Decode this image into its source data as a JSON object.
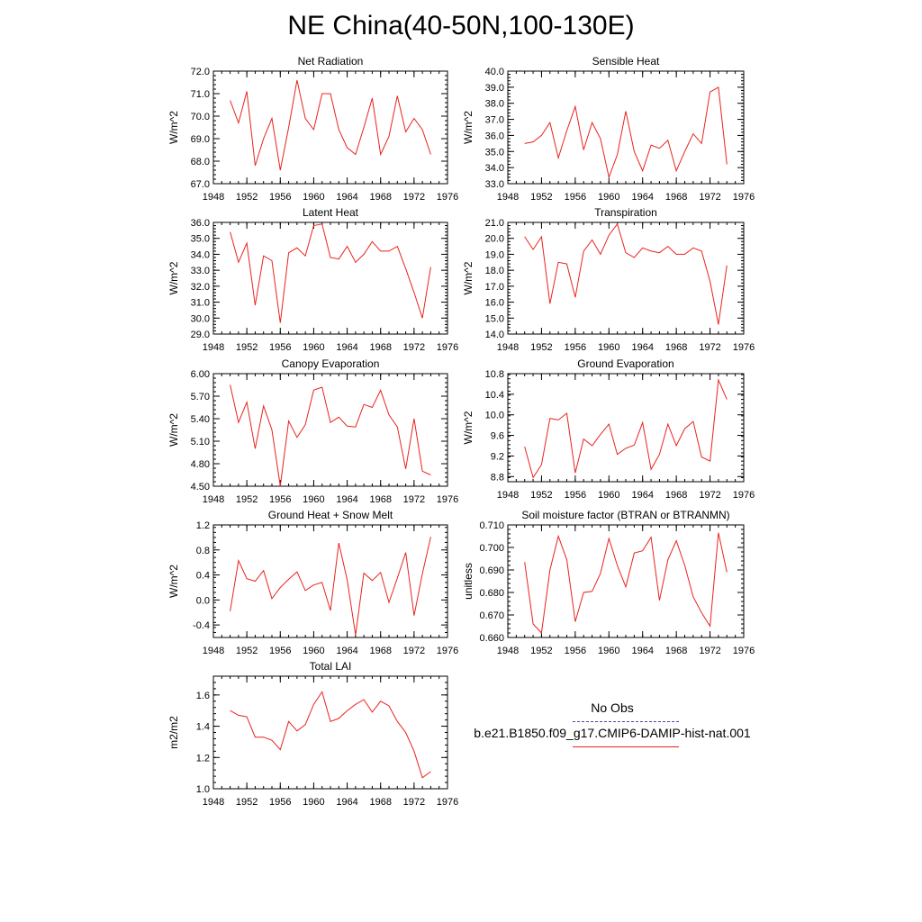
{
  "figure": {
    "title": "NE China(40-50N,100-130E)"
  },
  "legend": {
    "entries": [
      {
        "label": "No Obs",
        "style": "dashed",
        "color": "#4a4a9a"
      },
      {
        "label": "b.e21.B1850.f09_g17.CMIP6-DAMIP-hist-nat.001",
        "style": "solid",
        "color": "#e8231e"
      }
    ]
  },
  "chart_data": [
    {
      "type": "line",
      "title": "Net Radiation",
      "ylabel": "W/m^2",
      "xlim": [
        1948,
        1976
      ],
      "ylim": [
        67.0,
        72.0
      ],
      "xticks": [
        "1948",
        "1952",
        "1956",
        "1960",
        "1964",
        "1968",
        "1972",
        "1976"
      ],
      "yticks": [
        "67.0",
        "68.0",
        "69.0",
        "70.0",
        "71.0",
        "72.0"
      ],
      "series": [
        {
          "color": "#e8231e",
          "x": [
            1950,
            1951,
            1952,
            1953,
            1954,
            1955,
            1956,
            1957,
            1958,
            1959,
            1960,
            1961,
            1962,
            1963,
            1964,
            1965,
            1966,
            1967,
            1968,
            1969,
            1970,
            1971,
            1972,
            1973,
            1974
          ],
          "values": [
            70.7,
            69.7,
            71.1,
            67.8,
            69.0,
            69.9,
            67.6,
            69.5,
            71.6,
            69.9,
            69.4,
            71.0,
            71.0,
            69.4,
            68.6,
            68.3,
            69.5,
            70.8,
            68.3,
            69.1,
            70.9,
            69.3,
            69.9,
            69.4,
            68.3
          ]
        }
      ]
    },
    {
      "type": "line",
      "title": "Sensible Heat",
      "ylabel": "W/m^2",
      "xlim": [
        1948,
        1976
      ],
      "ylim": [
        33.0,
        40.0
      ],
      "xticks": [
        "1948",
        "1952",
        "1956",
        "1960",
        "1964",
        "1968",
        "1972",
        "1976"
      ],
      "yticks": [
        "33.0",
        "34.0",
        "35.0",
        "36.0",
        "37.0",
        "38.0",
        "39.0",
        "40.0"
      ],
      "series": [
        {
          "color": "#e8231e",
          "x": [
            1950,
            1951,
            1952,
            1953,
            1954,
            1955,
            1956,
            1957,
            1958,
            1959,
            1960,
            1961,
            1962,
            1963,
            1964,
            1965,
            1966,
            1967,
            1968,
            1969,
            1970,
            1971,
            1972,
            1973,
            1974
          ],
          "values": [
            35.5,
            35.6,
            36.0,
            36.8,
            34.6,
            36.3,
            37.8,
            35.1,
            36.8,
            35.8,
            33.4,
            34.8,
            37.5,
            35.0,
            33.8,
            35.4,
            35.2,
            35.7,
            33.8,
            35.0,
            36.1,
            35.5,
            38.7,
            39.0,
            34.2
          ]
        }
      ]
    },
    {
      "type": "line",
      "title": "Latent Heat",
      "ylabel": "W/m^2",
      "xlim": [
        1948,
        1976
      ],
      "ylim": [
        29.0,
        36.0
      ],
      "xticks": [
        "1948",
        "1952",
        "1956",
        "1960",
        "1964",
        "1968",
        "1972",
        "1976"
      ],
      "yticks": [
        "29.0",
        "30.0",
        "31.0",
        "32.0",
        "33.0",
        "34.0",
        "35.0",
        "36.0"
      ],
      "series": [
        {
          "color": "#e8231e",
          "x": [
            1950,
            1951,
            1952,
            1953,
            1954,
            1955,
            1956,
            1957,
            1958,
            1959,
            1960,
            1961,
            1962,
            1963,
            1964,
            1965,
            1966,
            1967,
            1968,
            1969,
            1970,
            1971,
            1972,
            1973,
            1974
          ],
          "values": [
            35.4,
            33.5,
            34.7,
            30.8,
            33.9,
            33.6,
            29.7,
            34.1,
            34.4,
            33.9,
            35.8,
            35.9,
            33.8,
            33.7,
            34.5,
            33.5,
            34.0,
            34.8,
            34.2,
            34.2,
            34.5,
            33.1,
            31.6,
            30.0,
            33.2
          ]
        }
      ]
    },
    {
      "type": "line",
      "title": "Transpiration",
      "ylabel": "W/m^2",
      "xlim": [
        1948,
        1976
      ],
      "ylim": [
        14.0,
        21.0
      ],
      "xticks": [
        "1948",
        "1952",
        "1956",
        "1960",
        "1964",
        "1968",
        "1972",
        "1976"
      ],
      "yticks": [
        "14.0",
        "15.0",
        "16.0",
        "17.0",
        "18.0",
        "19.0",
        "20.0",
        "21.0"
      ],
      "series": [
        {
          "color": "#e8231e",
          "x": [
            1950,
            1951,
            1952,
            1953,
            1954,
            1955,
            1956,
            1957,
            1958,
            1959,
            1960,
            1961,
            1962,
            1963,
            1964,
            1965,
            1966,
            1967,
            1968,
            1969,
            1970,
            1971,
            1972,
            1973,
            1974
          ],
          "values": [
            20.1,
            19.3,
            20.1,
            15.9,
            18.5,
            18.4,
            16.3,
            19.2,
            19.9,
            19.0,
            20.2,
            20.9,
            19.1,
            18.8,
            19.4,
            19.2,
            19.1,
            19.5,
            19.0,
            19.0,
            19.4,
            19.2,
            17.3,
            14.6,
            18.3
          ]
        }
      ]
    },
    {
      "type": "line",
      "title": "Canopy Evaporation",
      "ylabel": "W/m^2",
      "xlim": [
        1948,
        1976
      ],
      "ylim": [
        4.5,
        6.0
      ],
      "xticks": [
        "1948",
        "1952",
        "1956",
        "1960",
        "1964",
        "1968",
        "1972",
        "1976"
      ],
      "yticks": [
        "4.50",
        "4.80",
        "5.10",
        "5.40",
        "5.70",
        "6.00"
      ],
      "series": [
        {
          "color": "#e8231e",
          "x": [
            1950,
            1951,
            1952,
            1953,
            1954,
            1955,
            1956,
            1957,
            1958,
            1959,
            1960,
            1961,
            1962,
            1963,
            1964,
            1965,
            1966,
            1967,
            1968,
            1969,
            1970,
            1971,
            1972,
            1973,
            1974
          ],
          "values": [
            5.85,
            5.35,
            5.62,
            5.0,
            5.57,
            5.25,
            4.5,
            5.37,
            5.15,
            5.32,
            5.78,
            5.82,
            5.35,
            5.42,
            5.3,
            5.29,
            5.59,
            5.55,
            5.78,
            5.45,
            5.29,
            4.73,
            5.4,
            4.7,
            4.65
          ]
        }
      ]
    },
    {
      "type": "line",
      "title": "Ground Evaporation",
      "ylabel": "W/m^2",
      "xlim": [
        1948,
        1976
      ],
      "ylim": [
        8.7,
        10.8
      ],
      "xticks": [
        "1948",
        "1952",
        "1956",
        "1960",
        "1964",
        "1968",
        "1972",
        "1976"
      ],
      "yticks": [
        "8.8",
        "9.2",
        "9.6",
        "10.0",
        "10.4",
        "10.8"
      ],
      "series": [
        {
          "color": "#e8231e",
          "x": [
            1950,
            1951,
            1952,
            1953,
            1954,
            1955,
            1956,
            1957,
            1958,
            1959,
            1960,
            1961,
            1962,
            1963,
            1964,
            1965,
            1966,
            1967,
            1968,
            1969,
            1970,
            1971,
            1972,
            1973,
            1974
          ],
          "values": [
            9.38,
            8.78,
            9.03,
            9.93,
            9.9,
            10.03,
            8.87,
            9.53,
            9.4,
            9.62,
            9.82,
            9.23,
            9.35,
            9.41,
            9.85,
            8.94,
            9.23,
            9.82,
            9.4,
            9.73,
            9.87,
            9.18,
            9.1,
            10.68,
            10.3
          ]
        }
      ]
    },
    {
      "type": "line",
      "title": "Ground Heat + Snow Melt",
      "ylabel": "W/m^2",
      "xlim": [
        1948,
        1976
      ],
      "ylim": [
        -0.6,
        1.2
      ],
      "xticks": [
        "1948",
        "1952",
        "1956",
        "1960",
        "1964",
        "1968",
        "1972",
        "1976"
      ],
      "yticks": [
        "-0.4",
        "0.0",
        "0.4",
        "0.8",
        "1.2"
      ],
      "series": [
        {
          "color": "#e8231e",
          "x": [
            1950,
            1951,
            1952,
            1953,
            1954,
            1955,
            1956,
            1957,
            1958,
            1959,
            1960,
            1961,
            1962,
            1963,
            1964,
            1965,
            1966,
            1967,
            1968,
            1969,
            1970,
            1971,
            1972,
            1973,
            1974
          ],
          "values": [
            -0.18,
            0.63,
            0.34,
            0.3,
            0.47,
            0.02,
            0.2,
            0.33,
            0.45,
            0.15,
            0.24,
            0.28,
            -0.17,
            0.91,
            0.32,
            -0.56,
            0.43,
            0.31,
            0.44,
            -0.04,
            0.35,
            0.76,
            -0.25,
            0.42,
            1.01
          ]
        }
      ]
    },
    {
      "type": "line",
      "title": "Soil moisture factor (BTRAN or BTRANMN)",
      "ylabel": "unitless",
      "xlim": [
        1948,
        1976
      ],
      "ylim": [
        0.66,
        0.71
      ],
      "xticks": [
        "1948",
        "1952",
        "1956",
        "1960",
        "1964",
        "1968",
        "1972",
        "1976"
      ],
      "yticks": [
        "0.660",
        "0.670",
        "0.680",
        "0.690",
        "0.700",
        "0.710"
      ],
      "series": [
        {
          "color": "#e8231e",
          "x": [
            1950,
            1951,
            1952,
            1953,
            1954,
            1955,
            1956,
            1957,
            1958,
            1959,
            1960,
            1961,
            1962,
            1963,
            1964,
            1965,
            1966,
            1967,
            1968,
            1969,
            1970,
            1971,
            1972,
            1973,
            1974
          ],
          "values": [
            0.6935,
            0.666,
            0.662,
            0.69,
            0.705,
            0.6945,
            0.667,
            0.68,
            0.6805,
            0.6885,
            0.704,
            0.692,
            0.6825,
            0.6975,
            0.6985,
            0.7045,
            0.6765,
            0.6945,
            0.703,
            0.692,
            0.678,
            0.671,
            0.665,
            0.7065,
            0.689
          ]
        }
      ]
    },
    {
      "type": "line",
      "title": "Total LAI",
      "ylabel": "m2/m2",
      "xlim": [
        1948,
        1976
      ],
      "ylim": [
        1.0,
        1.72
      ],
      "xticks": [
        "1948",
        "1952",
        "1956",
        "1960",
        "1964",
        "1968",
        "1972",
        "1976"
      ],
      "yticks": [
        "1.0",
        "1.2",
        "1.4",
        "1.6"
      ],
      "series": [
        {
          "color": "#e8231e",
          "x": [
            1950,
            1951,
            1952,
            1953,
            1954,
            1955,
            1956,
            1957,
            1958,
            1959,
            1960,
            1961,
            1962,
            1963,
            1964,
            1965,
            1966,
            1967,
            1968,
            1969,
            1970,
            1971,
            1972,
            1973,
            1974
          ],
          "values": [
            1.5,
            1.47,
            1.46,
            1.33,
            1.33,
            1.31,
            1.25,
            1.43,
            1.37,
            1.41,
            1.54,
            1.62,
            1.43,
            1.45,
            1.5,
            1.54,
            1.57,
            1.49,
            1.56,
            1.53,
            1.43,
            1.36,
            1.24,
            1.07,
            1.11
          ]
        }
      ]
    }
  ]
}
